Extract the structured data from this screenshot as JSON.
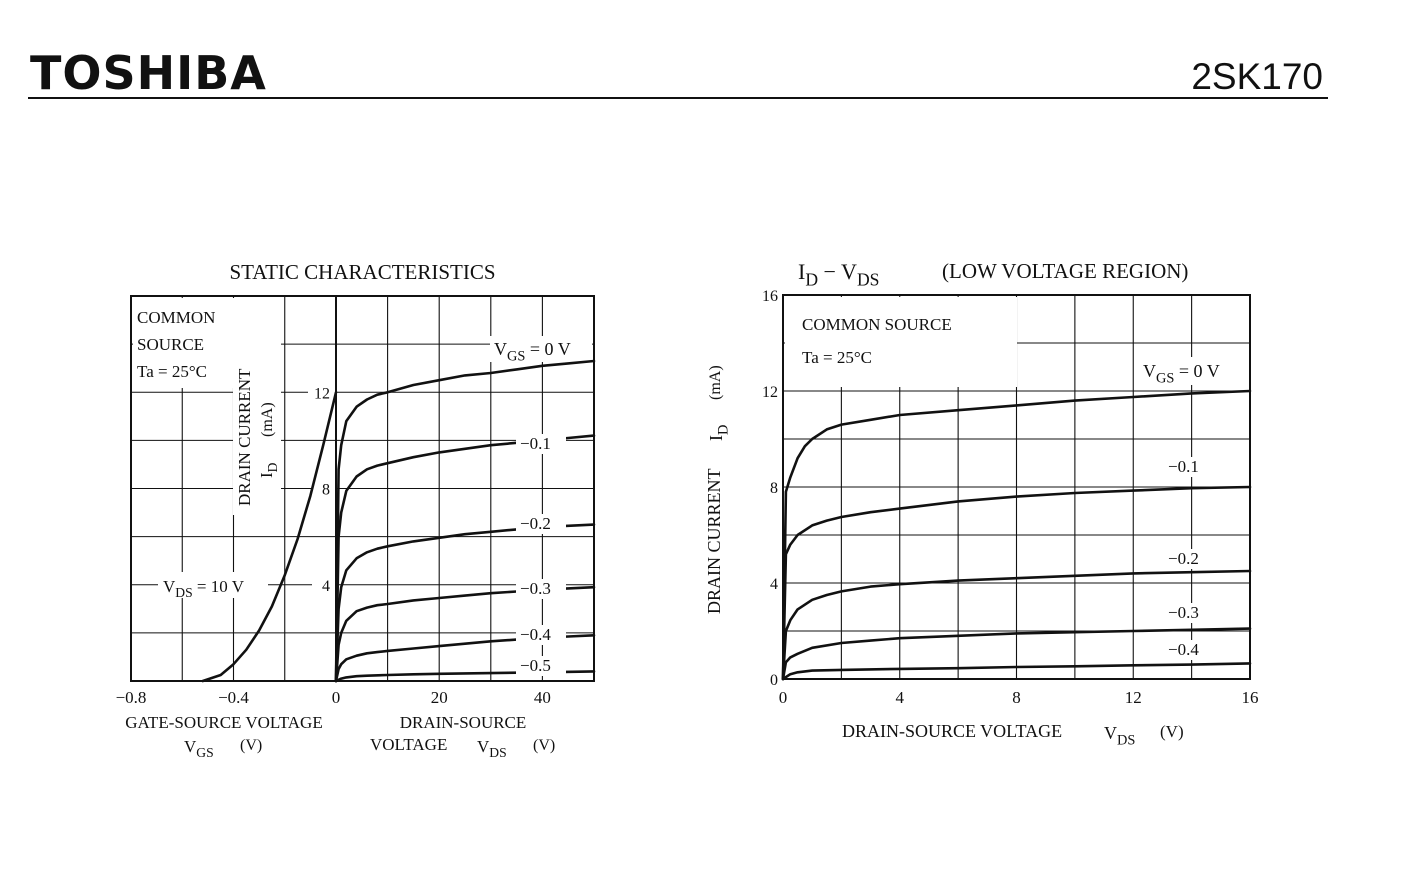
{
  "header": {
    "brand": "TOSHIBA",
    "part_number": "2SK170"
  },
  "chart_data": [
    {
      "type": "line",
      "title": "STATIC CHARACTERISTICS",
      "note_lines": [
        "COMMON",
        "SOURCE",
        "Ta = 25°C"
      ],
      "ylabel_lines": [
        "DRAIN CURRENT",
        "I",
        "D",
        "(mA)"
      ],
      "ylim": [
        0,
        16
      ],
      "yticks": [
        4,
        8,
        12
      ],
      "left_panel": {
        "xlabel_lines": [
          "GATE-SOURCE VOLTAGE",
          "V",
          "GS",
          "(V)"
        ],
        "xlim": [
          -0.8,
          0
        ],
        "xticks": [
          "−0.8",
          "−0.4",
          "0"
        ],
        "series": [
          {
            "name_parts": [
              "V",
              "DS",
              " = 10 V"
            ],
            "x": [
              -0.52,
              -0.45,
              -0.4,
              -0.35,
              -0.3,
              -0.25,
              -0.2,
              -0.15,
              -0.1,
              -0.05,
              0
            ],
            "y": [
              0,
              0.25,
              0.7,
              1.3,
              2.1,
              3.1,
              4.4,
              5.9,
              7.7,
              9.8,
              12.0
            ]
          }
        ]
      },
      "right_panel": {
        "xlabel_lines": [
          "DRAIN-SOURCE",
          "VOLTAGE",
          "V",
          "DS",
          "(V)"
        ],
        "xlim": [
          0,
          50
        ],
        "xticks": [
          "0",
          "20",
          "40"
        ],
        "series": [
          {
            "label": "0 V",
            "label_prefix": "V",
            "label_sub": "GS",
            "label_eq": " = ",
            "x": [
              0,
              0.5,
              1,
              2,
              4,
              6,
              8,
              10,
              15,
              20,
              25,
              30,
              35,
              40,
              45,
              50
            ],
            "y": [
              0,
              8.8,
              9.8,
              10.8,
              11.4,
              11.7,
              11.9,
              12.0,
              12.3,
              12.5,
              12.7,
              12.8,
              12.95,
              13.1,
              13.2,
              13.3
            ]
          },
          {
            "label": "−0.1",
            "x": [
              0,
              0.5,
              1,
              2,
              4,
              6,
              8,
              10,
              15,
              20,
              25,
              30,
              35,
              40,
              45,
              50
            ],
            "y": [
              0,
              6.0,
              7.0,
              7.9,
              8.5,
              8.8,
              8.95,
              9.05,
              9.3,
              9.5,
              9.65,
              9.8,
              9.9,
              10.0,
              10.1,
              10.2
            ]
          },
          {
            "label": "−0.2",
            "x": [
              0,
              0.5,
              1,
              2,
              4,
              6,
              8,
              10,
              15,
              20,
              25,
              30,
              35,
              40,
              45,
              50
            ],
            "y": [
              0,
              3.0,
              3.9,
              4.6,
              5.1,
              5.35,
              5.5,
              5.6,
              5.8,
              5.95,
              6.1,
              6.2,
              6.3,
              6.4,
              6.45,
              6.5
            ]
          },
          {
            "label": "−0.3",
            "x": [
              0,
              0.5,
              1,
              2,
              4,
              6,
              8,
              10,
              15,
              20,
              25,
              30,
              35,
              40,
              45,
              50
            ],
            "y": [
              0,
              1.5,
              2.0,
              2.5,
              2.9,
              3.05,
              3.15,
              3.2,
              3.35,
              3.45,
              3.55,
              3.65,
              3.72,
              3.8,
              3.85,
              3.9
            ]
          },
          {
            "label": "−0.4",
            "x": [
              0,
              0.5,
              1,
              2,
              4,
              6,
              8,
              10,
              15,
              20,
              25,
              30,
              35,
              40,
              45,
              50
            ],
            "y": [
              0,
              0.5,
              0.7,
              0.9,
              1.05,
              1.15,
              1.2,
              1.25,
              1.35,
              1.45,
              1.55,
              1.65,
              1.72,
              1.8,
              1.85,
              1.9
            ]
          },
          {
            "label": "−0.5",
            "x": [
              0,
              1,
              2,
              4,
              6,
              10,
              15,
              20,
              30,
              40,
              50
            ],
            "y": [
              0,
              0.1,
              0.15,
              0.2,
              0.22,
              0.25,
              0.28,
              0.3,
              0.33,
              0.36,
              0.4
            ]
          }
        ]
      }
    },
    {
      "type": "line",
      "title_parts": [
        "I",
        "D",
        " − ",
        "V",
        "DS",
        "(LOW VOLTAGE REGION)"
      ],
      "note_lines": [
        "COMMON SOURCE",
        "Ta = 25°C"
      ],
      "xlabel_parts": [
        "DRAIN-SOURCE VOLTAGE",
        "V",
        "DS",
        "(V)"
      ],
      "ylabel_parts": [
        "DRAIN CURRENT",
        "I",
        "D",
        "(mA)"
      ],
      "xlim": [
        0,
        16
      ],
      "ylim": [
        0,
        16
      ],
      "xticks": [
        0,
        4,
        8,
        12,
        16
      ],
      "yticks": [
        0,
        4,
        8,
        12,
        16
      ],
      "series": [
        {
          "label": "0 V",
          "label_prefix": "V",
          "label_sub": "GS",
          "label_eq": " = ",
          "x": [
            0,
            0.1,
            0.25,
            0.5,
            0.75,
            1,
            1.5,
            2,
            3,
            4,
            6,
            8,
            10,
            12,
            14,
            16
          ],
          "y": [
            0,
            7.8,
            8.4,
            9.2,
            9.7,
            10.0,
            10.4,
            10.6,
            10.8,
            11.0,
            11.2,
            11.4,
            11.6,
            11.75,
            11.9,
            12.0
          ]
        },
        {
          "label": "−0.1",
          "x": [
            0,
            0.1,
            0.25,
            0.5,
            1,
            1.5,
            2,
            3,
            4,
            6,
            8,
            10,
            12,
            14,
            16
          ],
          "y": [
            0,
            5.2,
            5.6,
            6.0,
            6.4,
            6.6,
            6.75,
            6.95,
            7.1,
            7.4,
            7.6,
            7.75,
            7.85,
            7.95,
            8.0
          ]
        },
        {
          "label": "−0.2",
          "x": [
            0,
            0.1,
            0.25,
            0.5,
            1,
            1.5,
            2,
            3,
            4,
            6,
            8,
            10,
            12,
            14,
            16
          ],
          "y": [
            0,
            2.0,
            2.45,
            2.9,
            3.3,
            3.5,
            3.65,
            3.85,
            3.95,
            4.1,
            4.2,
            4.3,
            4.4,
            4.45,
            4.5
          ]
        },
        {
          "label": "−0.3",
          "x": [
            0,
            0.1,
            0.25,
            0.5,
            1,
            2,
            3,
            4,
            6,
            8,
            10,
            12,
            14,
            16
          ],
          "y": [
            0,
            0.7,
            0.9,
            1.05,
            1.3,
            1.5,
            1.6,
            1.7,
            1.8,
            1.9,
            1.95,
            2.0,
            2.05,
            2.1
          ]
        },
        {
          "label": "−0.4",
          "x": [
            0,
            0.25,
            0.5,
            1,
            2,
            4,
            6,
            8,
            10,
            12,
            14,
            16
          ],
          "y": [
            0,
            0.2,
            0.28,
            0.35,
            0.38,
            0.42,
            0.45,
            0.5,
            0.53,
            0.57,
            0.6,
            0.65
          ]
        }
      ]
    }
  ]
}
